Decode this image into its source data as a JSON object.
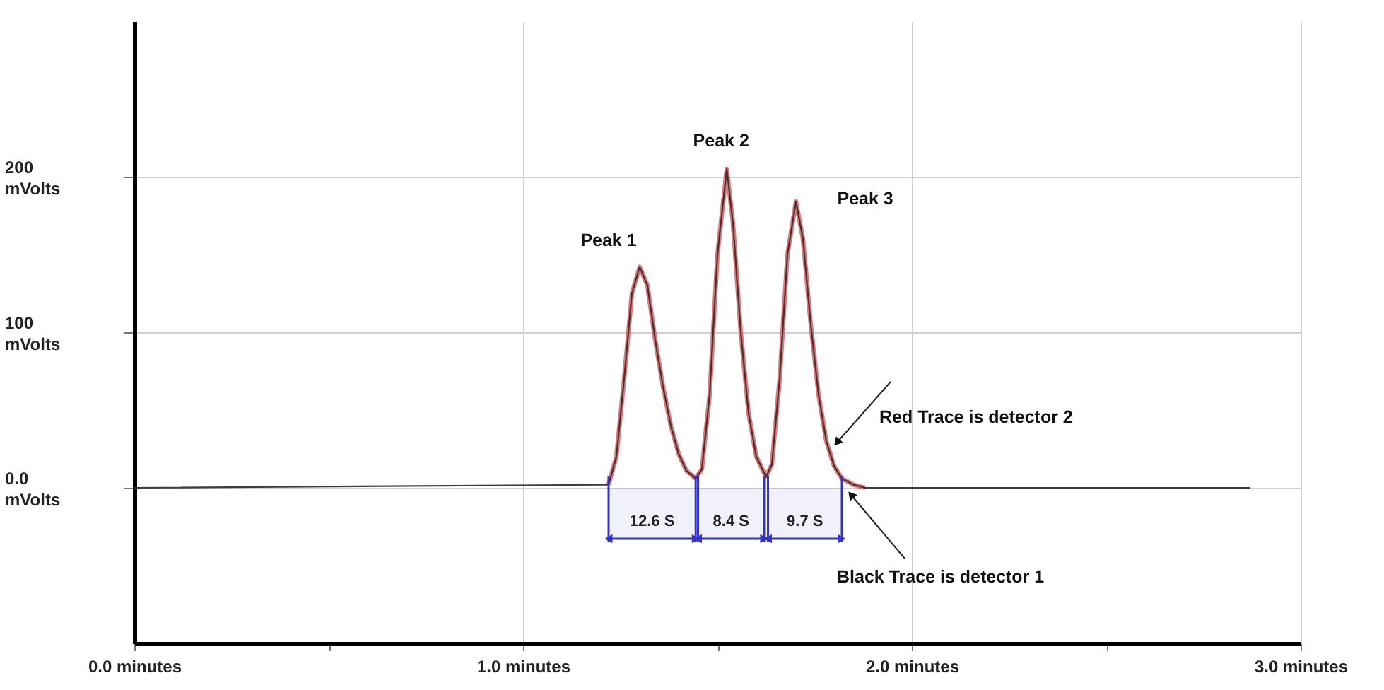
{
  "chart_data": {
    "type": "line",
    "x": [
      0,
      1.22,
      1.24,
      1.26,
      1.28,
      1.3,
      1.32,
      1.34,
      1.36,
      1.38,
      1.4,
      1.42,
      1.444,
      1.46,
      1.48,
      1.5,
      1.524,
      1.54,
      1.56,
      1.58,
      1.6,
      1.625,
      1.64,
      1.66,
      1.68,
      1.702,
      1.72,
      1.74,
      1.76,
      1.78,
      1.8,
      1.82,
      1.85,
      1.88,
      2.87
    ],
    "series": [
      {
        "color": "#e07070",
        "values": [
          null,
          2,
          20,
          70,
          125,
          142,
          130,
          95,
          65,
          40,
          22,
          11,
          6,
          12,
          60,
          150,
          205,
          170,
          100,
          48,
          20,
          7,
          15,
          70,
          150,
          184,
          160,
          105,
          60,
          30,
          14,
          6,
          2,
          0,
          null
        ]
      },
      {
        "color": "#333333",
        "values": [
          0,
          2,
          20,
          70,
          125,
          142,
          130,
          95,
          65,
          40,
          22,
          11,
          6,
          12,
          60,
          150,
          205,
          170,
          100,
          48,
          20,
          7,
          15,
          70,
          150,
          184,
          160,
          105,
          60,
          30,
          14,
          6,
          2,
          0,
          0
        ]
      }
    ],
    "xlim": [
      0,
      3.0
    ],
    "xticks": [
      {
        "value": 0,
        "label": "0.0 minutes"
      },
      {
        "value": 0.5,
        "label": null
      },
      {
        "value": 1,
        "label": "1.0 minutes"
      },
      {
        "value": 1.5,
        "label": null
      },
      {
        "value": 2,
        "label": "2.0 minutes"
      },
      {
        "value": 2.5,
        "label": null
      },
      {
        "value": 3,
        "label": "3.0 minutes"
      }
    ],
    "ylim": [
      -100,
      300
    ],
    "yticks": [
      {
        "value": 0,
        "label": "0.0 mVolts"
      },
      {
        "value": 100,
        "label": "100 mVolts"
      },
      {
        "value": 200,
        "label": "200 mVolts"
      }
    ],
    "grid": true,
    "bands": [
      {
        "axis": "x",
        "from": 1.22,
        "to": 1.444,
        "label": "12.6 S",
        "color": "#3333cc"
      },
      {
        "axis": "x",
        "from": 1.45,
        "to": 1.62,
        "label": "8.4 S",
        "color": "#3333cc"
      },
      {
        "axis": "x",
        "from": 1.63,
        "to": 1.82,
        "label": "9.7 S",
        "color": "#3333cc"
      }
    ],
    "annotations": [
      {
        "text": "Peak 1",
        "x": 1.3,
        "y": 142
      },
      {
        "text": "Peak 2",
        "x": 1.524,
        "y": 205
      },
      {
        "text": "Peak 3",
        "x": 1.702,
        "y": 184
      },
      "Red Trace is detector 2",
      "Black Trace is detector 1"
    ]
  }
}
